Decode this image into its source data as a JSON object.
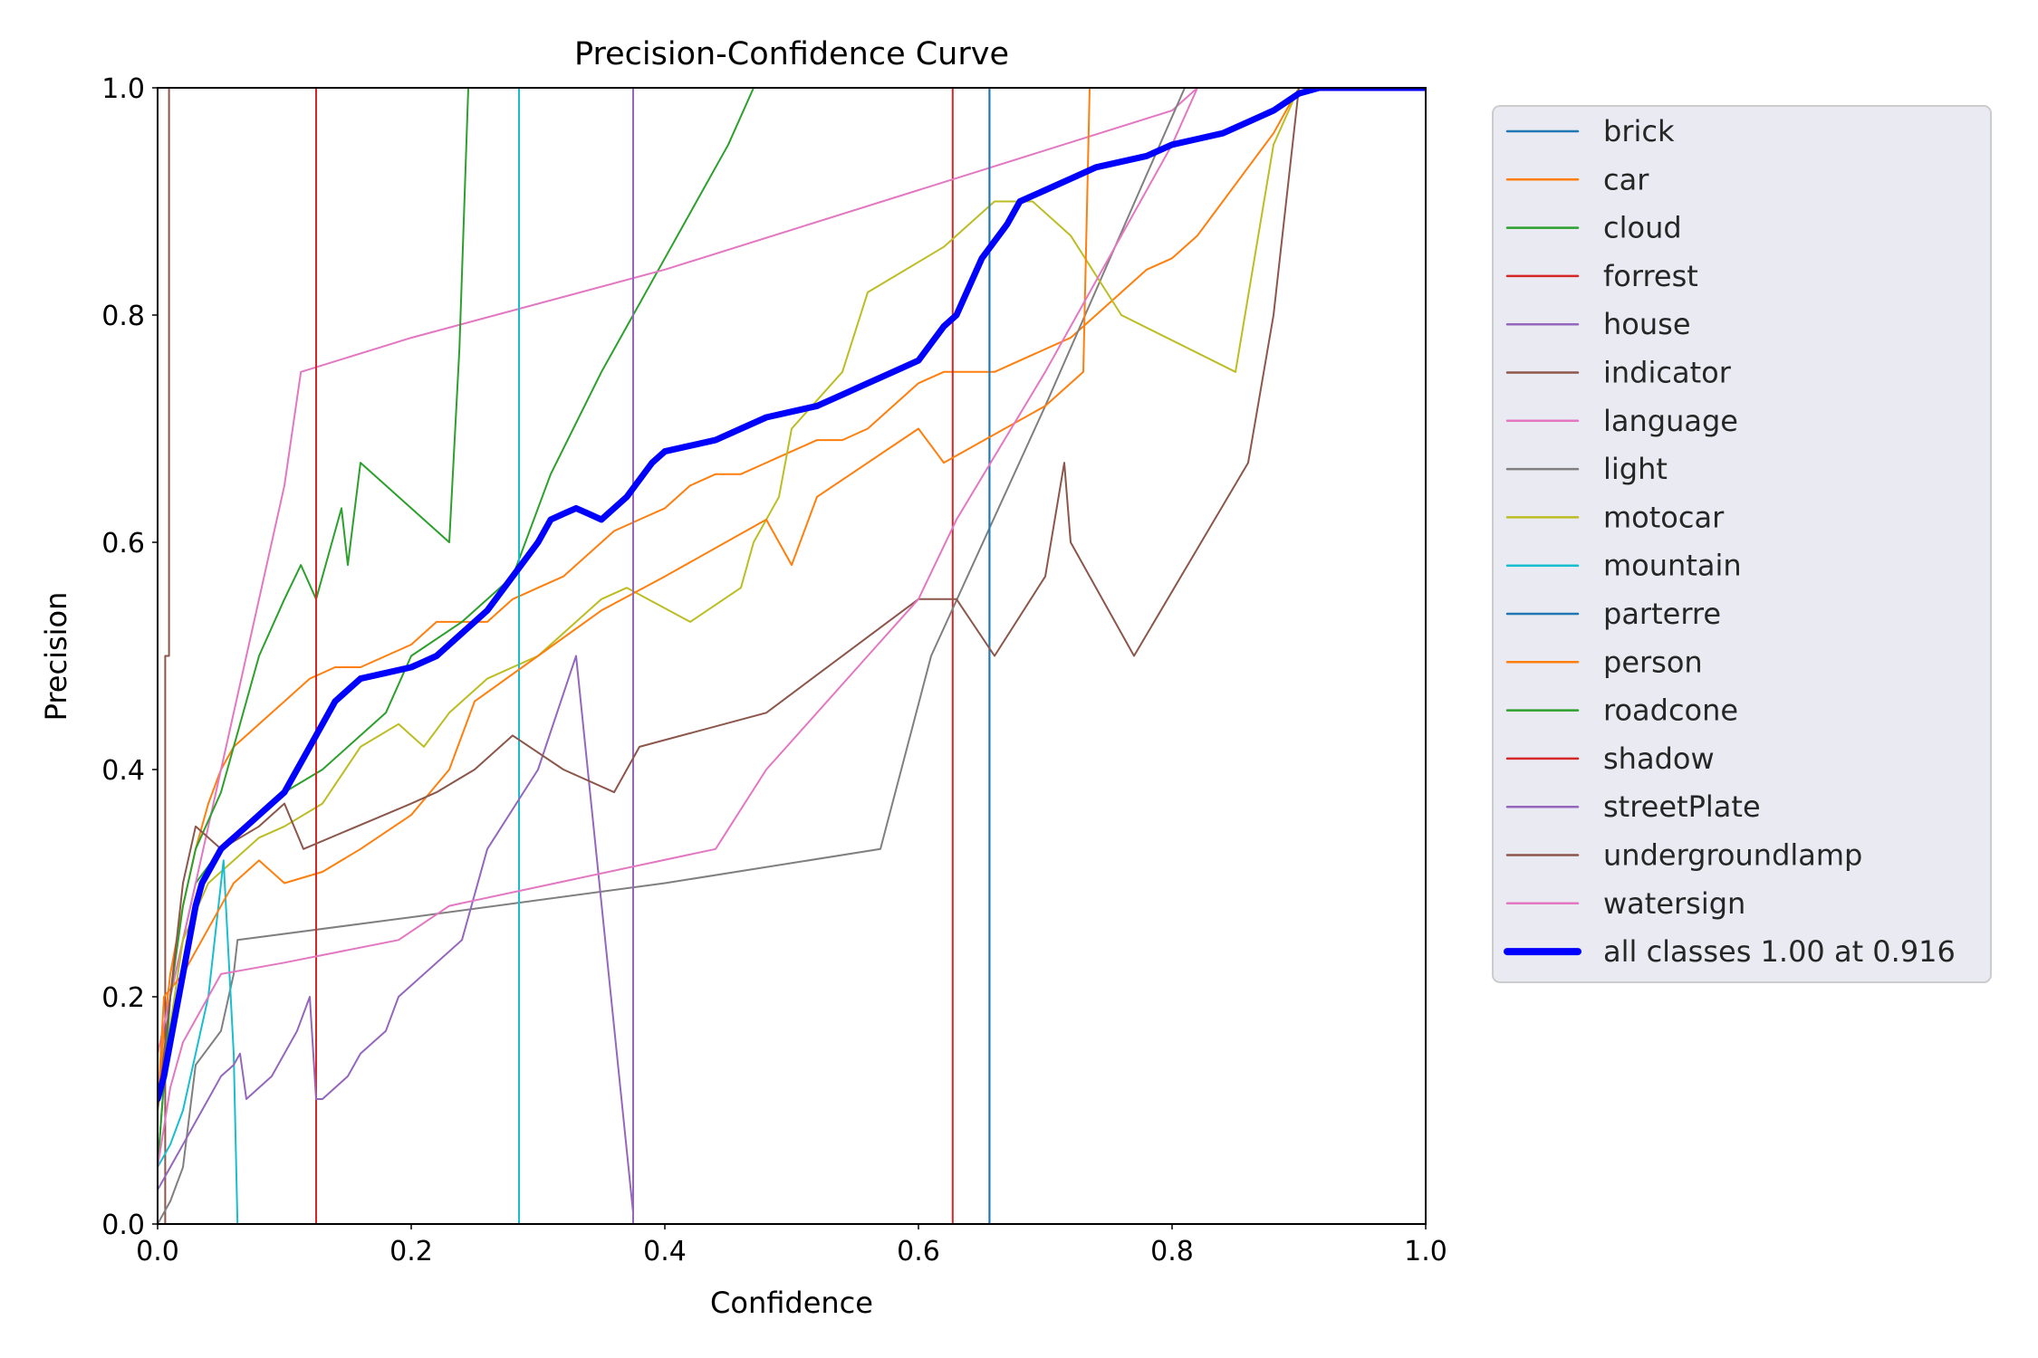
{
  "chart_data": {
    "type": "line",
    "title": "Precision-Confidence Curve",
    "xlabel": "Confidence",
    "ylabel": "Precision",
    "xlim": [
      0,
      1
    ],
    "ylim": [
      0,
      1
    ],
    "xticks": [
      "0.0",
      "0.2",
      "0.4",
      "0.6",
      "0.8",
      "1.0"
    ],
    "yticks": [
      "0.0",
      "0.2",
      "0.4",
      "0.6",
      "0.8",
      "1.0"
    ],
    "grid": false,
    "legend_position": "outside-right",
    "series": [
      {
        "name": "brick",
        "color": "#1f77b4",
        "width": 2,
        "x": [
          0,
          0.656,
          0.656,
          1
        ],
        "y": [
          0,
          0,
          1,
          1
        ]
      },
      {
        "name": "car",
        "color": "#ff7f0e",
        "width": 2,
        "x": [
          0,
          0.005,
          0.01,
          0.02,
          0.03,
          0.04,
          0.05,
          0.06,
          0.07,
          0.08,
          0.09,
          0.1,
          0.12,
          0.14,
          0.16,
          0.18,
          0.2,
          0.22,
          0.24,
          0.26,
          0.28,
          0.3,
          0.32,
          0.34,
          0.36,
          0.38,
          0.4,
          0.42,
          0.44,
          0.46,
          0.48,
          0.5,
          0.52,
          0.54,
          0.56,
          0.58,
          0.6,
          0.62,
          0.64,
          0.66,
          0.68,
          0.7,
          0.72,
          0.74,
          0.76,
          0.78,
          0.8,
          0.82,
          0.84,
          0.86,
          0.88,
          0.9,
          1
        ],
        "y": [
          0.1,
          0.17,
          0.22,
          0.28,
          0.33,
          0.37,
          0.4,
          0.42,
          0.43,
          0.44,
          0.45,
          0.46,
          0.48,
          0.49,
          0.49,
          0.5,
          0.51,
          0.53,
          0.53,
          0.53,
          0.55,
          0.56,
          0.57,
          0.59,
          0.61,
          0.62,
          0.63,
          0.65,
          0.66,
          0.66,
          0.67,
          0.68,
          0.69,
          0.69,
          0.7,
          0.72,
          0.74,
          0.75,
          0.75,
          0.75,
          0.76,
          0.77,
          0.78,
          0.8,
          0.82,
          0.84,
          0.85,
          0.87,
          0.9,
          0.93,
          0.96,
          1,
          1
        ]
      },
      {
        "name": "cloud",
        "color": "#2ca02c",
        "width": 2,
        "x": [
          0,
          0.01,
          0.02,
          0.03,
          0.05,
          0.07,
          0.1,
          0.13,
          0.15,
          0.18,
          0.2,
          0.24,
          0.28,
          0.31,
          0.35,
          0.4,
          0.45,
          0.47,
          1
        ],
        "y": [
          0.05,
          0.2,
          0.25,
          0.3,
          0.33,
          0.35,
          0.38,
          0.4,
          0.42,
          0.45,
          0.5,
          0.53,
          0.57,
          0.66,
          0.75,
          0.85,
          0.95,
          1,
          1
        ]
      },
      {
        "name": "forrest",
        "color": "#d62728",
        "width": 2,
        "x": [
          0,
          0.627,
          0.627,
          1
        ],
        "y": [
          0,
          0,
          1,
          1
        ]
      },
      {
        "name": "house",
        "color": "#9467bd",
        "width": 2,
        "x": [
          0,
          0.375,
          0.375,
          1
        ],
        "y": [
          0,
          0,
          1,
          1
        ]
      },
      {
        "name": "indicator",
        "color": "#8c564b",
        "width": 2,
        "x": [
          0,
          0.006,
          0.006,
          0.009,
          0.009,
          1
        ],
        "y": [
          0,
          0,
          0.5,
          0.5,
          1,
          1
        ]
      },
      {
        "name": "language",
        "color": "#e377c2",
        "width": 2,
        "x": [
          0,
          0.02,
          0.05,
          0.08,
          0.1,
          0.113,
          0.2,
          0.4,
          0.6,
          0.8,
          0.82,
          1
        ],
        "y": [
          0.15,
          0.25,
          0.4,
          0.55,
          0.65,
          0.75,
          0.78,
          0.84,
          0.91,
          0.98,
          1,
          1
        ]
      },
      {
        "name": "light",
        "color": "#7f7f7f",
        "width": 2,
        "x": [
          0,
          0.01,
          0.02,
          0.03,
          0.05,
          0.06,
          0.063,
          0.2,
          0.4,
          0.57,
          0.61,
          0.7,
          0.81,
          1
        ],
        "y": [
          0,
          0.02,
          0.05,
          0.14,
          0.17,
          0.22,
          0.25,
          0.27,
          0.3,
          0.33,
          0.5,
          0.72,
          1,
          1
        ]
      },
      {
        "name": "motocar",
        "color": "#bcbd22",
        "width": 2,
        "x": [
          0,
          0.02,
          0.04,
          0.06,
          0.08,
          0.1,
          0.13,
          0.16,
          0.19,
          0.21,
          0.23,
          0.26,
          0.3,
          0.35,
          0.37,
          0.42,
          0.46,
          0.47,
          0.49,
          0.5,
          0.54,
          0.56,
          0.62,
          0.66,
          0.69,
          0.72,
          0.76,
          0.85,
          0.88,
          0.9,
          1
        ],
        "y": [
          0.1,
          0.25,
          0.3,
          0.32,
          0.34,
          0.35,
          0.37,
          0.42,
          0.44,
          0.42,
          0.45,
          0.48,
          0.5,
          0.55,
          0.56,
          0.53,
          0.56,
          0.6,
          0.64,
          0.7,
          0.75,
          0.82,
          0.86,
          0.9,
          0.9,
          0.87,
          0.8,
          0.75,
          0.95,
          1,
          1
        ]
      },
      {
        "name": "mountain",
        "color": "#17becf",
        "width": 2,
        "x": [
          0,
          0.01,
          0.02,
          0.04,
          0.052,
          0.06,
          0.063,
          0.285,
          0.285,
          1
        ],
        "y": [
          0.05,
          0.07,
          0.1,
          0.2,
          0.32,
          0.15,
          0,
          0,
          1,
          1
        ]
      },
      {
        "name": "parterre",
        "color": "#1f77b4",
        "width": 2,
        "x": [
          0,
          0.656,
          0.656,
          1
        ],
        "y": [
          0,
          0,
          1,
          1
        ]
      },
      {
        "name": "person",
        "color": "#ff7f0e",
        "width": 2,
        "x": [
          0,
          0.005,
          0.02,
          0.04,
          0.06,
          0.08,
          0.1,
          0.13,
          0.16,
          0.2,
          0.23,
          0.25,
          0.3,
          0.35,
          0.4,
          0.48,
          0.5,
          0.52,
          0.6,
          0.62,
          0.7,
          0.73,
          0.735,
          1
        ],
        "y": [
          0.1,
          0.2,
          0.22,
          0.26,
          0.3,
          0.32,
          0.3,
          0.31,
          0.33,
          0.36,
          0.4,
          0.46,
          0.5,
          0.54,
          0.57,
          0.62,
          0.58,
          0.64,
          0.7,
          0.67,
          0.72,
          0.75,
          1,
          1
        ]
      },
      {
        "name": "roadcone",
        "color": "#2ca02c",
        "width": 2,
        "x": [
          0,
          0.01,
          0.02,
          0.03,
          0.05,
          0.06,
          0.08,
          0.1,
          0.113,
          0.125,
          0.145,
          0.15,
          0.16,
          0.23,
          0.238,
          0.245,
          1
        ],
        "y": [
          0.05,
          0.2,
          0.28,
          0.33,
          0.38,
          0.42,
          0.5,
          0.55,
          0.58,
          0.55,
          0.63,
          0.58,
          0.67,
          0.6,
          0.77,
          1,
          1
        ]
      },
      {
        "name": "shadow",
        "color": "#d62728",
        "width": 2,
        "x": [
          0,
          0.125,
          0.125,
          1
        ],
        "y": [
          0,
          0,
          1,
          1
        ]
      },
      {
        "name": "streetPlate",
        "color": "#9467bd",
        "width": 2,
        "x": [
          0,
          0.01,
          0.02,
          0.03,
          0.04,
          0.05,
          0.06,
          0.065,
          0.07,
          0.08,
          0.09,
          0.1,
          0.11,
          0.12,
          0.125,
          0.13,
          0.15,
          0.16,
          0.18,
          0.19,
          0.24,
          0.26,
          0.3,
          0.33,
          0.375,
          0.375,
          1
        ],
        "y": [
          0.03,
          0.05,
          0.07,
          0.09,
          0.11,
          0.13,
          0.14,
          0.15,
          0.11,
          0.12,
          0.13,
          0.15,
          0.17,
          0.2,
          0.11,
          0.11,
          0.13,
          0.15,
          0.17,
          0.2,
          0.25,
          0.33,
          0.4,
          0.5,
          0.01,
          1,
          1
        ]
      },
      {
        "name": "undergroundlamp",
        "color": "#8c564b",
        "width": 2,
        "x": [
          0,
          0.01,
          0.02,
          0.03,
          0.05,
          0.08,
          0.1,
          0.115,
          0.2,
          0.22,
          0.25,
          0.28,
          0.32,
          0.36,
          0.38,
          0.48,
          0.6,
          0.63,
          0.66,
          0.7,
          0.715,
          0.72,
          0.77,
          0.86,
          0.88,
          0.9,
          1
        ],
        "y": [
          0.1,
          0.2,
          0.3,
          0.35,
          0.33,
          0.35,
          0.37,
          0.33,
          0.37,
          0.38,
          0.4,
          0.43,
          0.4,
          0.38,
          0.42,
          0.45,
          0.55,
          0.55,
          0.5,
          0.57,
          0.67,
          0.6,
          0.5,
          0.67,
          0.8,
          1,
          1
        ]
      },
      {
        "name": "watersign",
        "color": "#e377c2",
        "width": 2,
        "x": [
          0,
          0.01,
          0.02,
          0.04,
          0.05,
          0.1,
          0.19,
          0.23,
          0.44,
          0.48,
          0.56,
          0.6,
          0.63,
          0.7,
          0.8,
          0.82,
          1
        ],
        "y": [
          0.05,
          0.12,
          0.16,
          0.2,
          0.22,
          0.23,
          0.25,
          0.28,
          0.33,
          0.4,
          0.5,
          0.55,
          0.62,
          0.75,
          0.95,
          1,
          1
        ]
      },
      {
        "name": "all classes 1.00 at 0.916",
        "color": "#0000ff",
        "width": 7,
        "x": [
          0,
          0.005,
          0.01,
          0.015,
          0.02,
          0.025,
          0.03,
          0.035,
          0.04,
          0.05,
          0.06,
          0.07,
          0.08,
          0.09,
          0.1,
          0.11,
          0.12,
          0.13,
          0.14,
          0.15,
          0.16,
          0.18,
          0.2,
          0.21,
          0.22,
          0.24,
          0.26,
          0.28,
          0.3,
          0.31,
          0.32,
          0.33,
          0.34,
          0.35,
          0.37,
          0.39,
          0.4,
          0.42,
          0.44,
          0.46,
          0.48,
          0.5,
          0.52,
          0.54,
          0.56,
          0.58,
          0.6,
          0.62,
          0.63,
          0.65,
          0.67,
          0.68,
          0.7,
          0.72,
          0.74,
          0.76,
          0.78,
          0.8,
          0.82,
          0.84,
          0.85,
          0.86,
          0.88,
          0.9,
          0.916,
          0.95,
          1
        ],
        "y": [
          0.11,
          0.13,
          0.16,
          0.19,
          0.22,
          0.25,
          0.28,
          0.3,
          0.31,
          0.33,
          0.34,
          0.35,
          0.36,
          0.37,
          0.38,
          0.4,
          0.42,
          0.44,
          0.46,
          0.47,
          0.48,
          0.485,
          0.49,
          0.495,
          0.5,
          0.52,
          0.54,
          0.57,
          0.6,
          0.62,
          0.625,
          0.63,
          0.625,
          0.62,
          0.64,
          0.67,
          0.68,
          0.685,
          0.69,
          0.7,
          0.71,
          0.715,
          0.72,
          0.73,
          0.74,
          0.75,
          0.76,
          0.79,
          0.8,
          0.85,
          0.88,
          0.9,
          0.91,
          0.92,
          0.93,
          0.935,
          0.94,
          0.95,
          0.955,
          0.96,
          0.965,
          0.97,
          0.98,
          0.995,
          1,
          1,
          1
        ]
      }
    ]
  }
}
